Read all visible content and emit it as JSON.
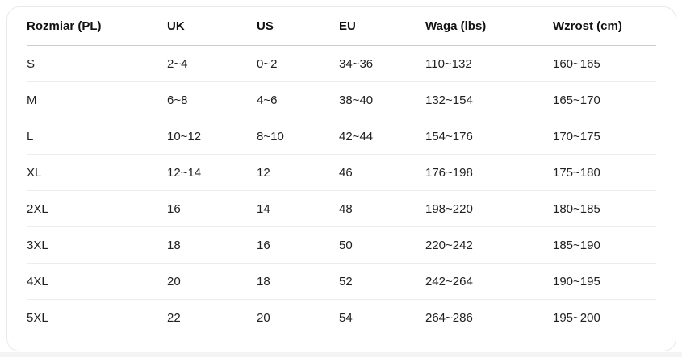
{
  "table": {
    "columns": [
      {
        "key": "size",
        "label": "Rozmiar (PL)"
      },
      {
        "key": "uk",
        "label": "UK"
      },
      {
        "key": "us",
        "label": "US"
      },
      {
        "key": "eu",
        "label": "EU"
      },
      {
        "key": "weight",
        "label": "Waga (lbs)"
      },
      {
        "key": "height",
        "label": "Wzrost (cm)"
      }
    ],
    "rows": [
      [
        "S",
        "2~4",
        "0~2",
        "34~36",
        "110~132",
        "160~165"
      ],
      [
        "M",
        "6~8",
        "4~6",
        "38~40",
        "132~154",
        "165~170"
      ],
      [
        "L",
        "10~12",
        "8~10",
        "42~44",
        "154~176",
        "170~175"
      ],
      [
        "XL",
        "12~14",
        "12",
        "46",
        "176~198",
        "175~180"
      ],
      [
        "2XL",
        "16",
        "14",
        "48",
        "198~220",
        "180~185"
      ],
      [
        "3XL",
        "18",
        "16",
        "50",
        "220~242",
        "185~190"
      ],
      [
        "4XL",
        "20",
        "18",
        "52",
        "242~264",
        "190~195"
      ],
      [
        "5XL",
        "22",
        "20",
        "54",
        "264~286",
        "195~200"
      ]
    ]
  },
  "colors": {
    "page_background": "#ffffff",
    "card_background": "#ffffff",
    "card_border": "#e9e9eb",
    "header_divider": "#cbcbcd",
    "row_divider": "#ededef",
    "header_text": "#111111",
    "cell_text": "#202124",
    "bottom_strip": "#f4f4f5"
  }
}
